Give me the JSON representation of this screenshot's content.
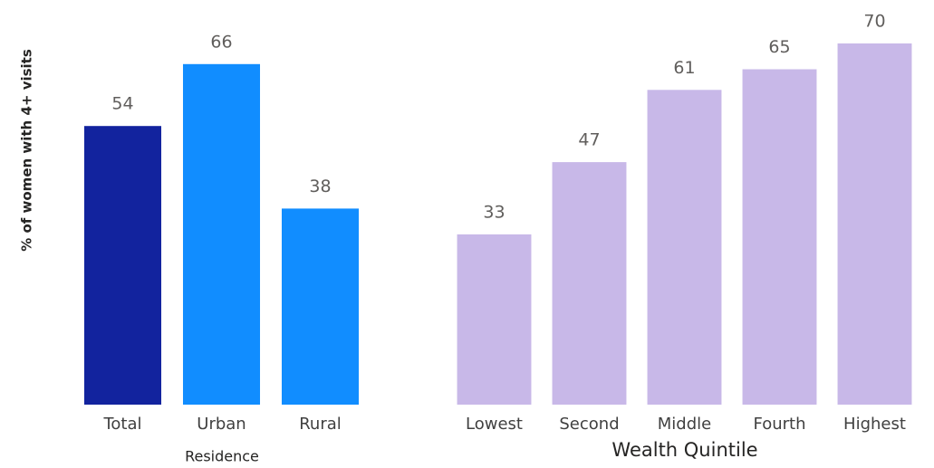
{
  "chart_data": [
    {
      "type": "bar",
      "y_label": "% of women with 4+ visits",
      "x_label": "Residence",
      "categories": [
        "Total",
        "Urban",
        "Rural"
      ],
      "values": [
        54,
        66,
        38
      ],
      "colors": [
        "#12239e",
        "#118dff",
        "#118dff"
      ],
      "ylim": [
        0,
        70
      ]
    },
    {
      "type": "bar",
      "x_label": "Wealth Quintile",
      "categories": [
        "Lowest",
        "Second",
        "Middle",
        "Fourth",
        "Highest"
      ],
      "values": [
        33,
        47,
        61,
        65,
        70
      ],
      "color": "#c8b8e8",
      "ylim": [
        0,
        70
      ]
    }
  ]
}
